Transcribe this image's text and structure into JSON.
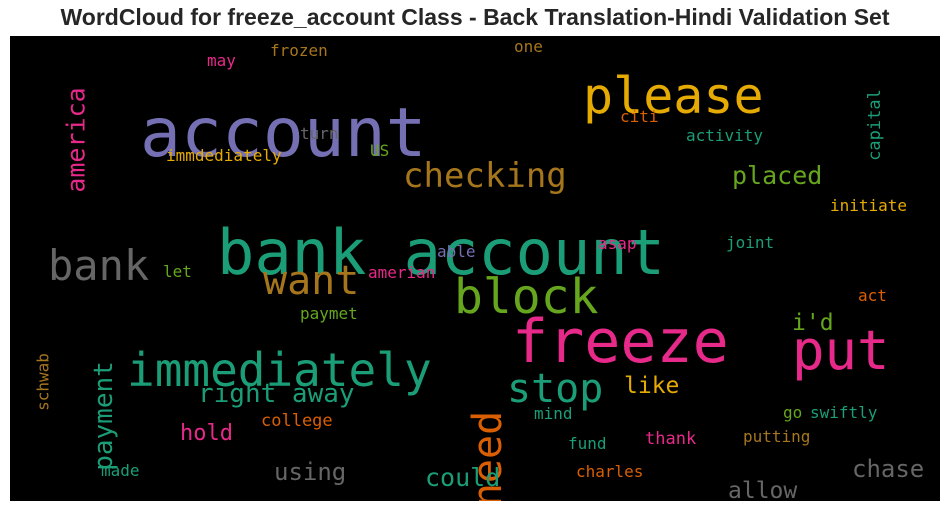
{
  "chart_data": {
    "type": "wordcloud",
    "title": "WordCloud for freeze_account Class - Back Translation-Hindi Validation Set",
    "background": "#000000",
    "words": [
      {
        "text": "account",
        "color": "#7570b3",
        "orientation": "horizontal"
      },
      {
        "text": "please",
        "color": "#e6ab02",
        "orientation": "horizontal"
      },
      {
        "text": "bank account",
        "color": "#1b9e77",
        "orientation": "horizontal"
      },
      {
        "text": "freeze",
        "color": "#e7298a",
        "orientation": "horizontal"
      },
      {
        "text": "immediately",
        "color": "#1b9e77",
        "orientation": "horizontal"
      },
      {
        "text": "put",
        "color": "#e7298a",
        "orientation": "horizontal"
      },
      {
        "text": "block",
        "color": "#66a61e",
        "orientation": "horizontal"
      },
      {
        "text": "bank",
        "color": "#666666",
        "orientation": "horizontal"
      },
      {
        "text": "want",
        "color": "#a6761d",
        "orientation": "horizontal"
      },
      {
        "text": "stop",
        "color": "#1b9e77",
        "orientation": "horizontal"
      },
      {
        "text": "need",
        "color": "#d95f02",
        "orientation": "vertical"
      },
      {
        "text": "checking",
        "color": "#a6761d",
        "orientation": "horizontal"
      },
      {
        "text": "america",
        "color": "#e7298a",
        "orientation": "vertical"
      },
      {
        "text": "payment",
        "color": "#1b9e77",
        "orientation": "vertical"
      },
      {
        "text": "right away",
        "color": "#1b9e77",
        "orientation": "horizontal"
      },
      {
        "text": "placed",
        "color": "#66a61e",
        "orientation": "horizontal"
      },
      {
        "text": "using",
        "color": "#666666",
        "orientation": "horizontal"
      },
      {
        "text": "chase",
        "color": "#666666",
        "orientation": "horizontal"
      },
      {
        "text": "could",
        "color": "#1b9e77",
        "orientation": "horizontal"
      },
      {
        "text": "allow",
        "color": "#666666",
        "orientation": "horizontal"
      },
      {
        "text": "hold",
        "color": "#e7298a",
        "orientation": "horizontal"
      },
      {
        "text": "i'd",
        "color": "#66a61e",
        "orientation": "horizontal"
      },
      {
        "text": "like",
        "color": "#e6ab02",
        "orientation": "horizontal"
      },
      {
        "text": "frozen",
        "color": "#a6761d",
        "orientation": "horizontal"
      },
      {
        "text": "may",
        "color": "#e7298a",
        "orientation": "horizontal"
      },
      {
        "text": "one",
        "color": "#a6761d",
        "orientation": "horizontal"
      },
      {
        "text": "capital",
        "color": "#1b9e77",
        "orientation": "vertical"
      },
      {
        "text": "citi",
        "color": "#d95f02",
        "orientation": "horizontal"
      },
      {
        "text": "activity",
        "color": "#1b9e77",
        "orientation": "horizontal"
      },
      {
        "text": "turn",
        "color": "#666666",
        "orientation": "horizontal"
      },
      {
        "text": "US",
        "color": "#66a61e",
        "orientation": "horizontal"
      },
      {
        "text": "immdediately",
        "color": "#e6ab02",
        "orientation": "horizontal"
      },
      {
        "text": "initiate",
        "color": "#e6ab02",
        "orientation": "horizontal"
      },
      {
        "text": "joint",
        "color": "#1b9e77",
        "orientation": "horizontal"
      },
      {
        "text": "asap",
        "color": "#e7298a",
        "orientation": "horizontal"
      },
      {
        "text": "able",
        "color": "#7570b3",
        "orientation": "horizontal"
      },
      {
        "text": "let",
        "color": "#66a61e",
        "orientation": "horizontal"
      },
      {
        "text": "amerian",
        "color": "#e7298a",
        "orientation": "horizontal"
      },
      {
        "text": "act",
        "color": "#d95f02",
        "orientation": "horizontal"
      },
      {
        "text": "paymet",
        "color": "#66a61e",
        "orientation": "horizontal"
      },
      {
        "text": "schwab",
        "color": "#a6761d",
        "orientation": "vertical"
      },
      {
        "text": "college",
        "color": "#d95f02",
        "orientation": "horizontal"
      },
      {
        "text": "mind",
        "color": "#1b9e77",
        "orientation": "horizontal"
      },
      {
        "text": "go",
        "color": "#66a61e",
        "orientation": "horizontal"
      },
      {
        "text": "swiftly",
        "color": "#1b9e77",
        "orientation": "horizontal"
      },
      {
        "text": "fund",
        "color": "#1b9e77",
        "orientation": "horizontal"
      },
      {
        "text": "thank",
        "color": "#e7298a",
        "orientation": "horizontal"
      },
      {
        "text": "putting",
        "color": "#a6761d",
        "orientation": "horizontal"
      },
      {
        "text": "made",
        "color": "#1b9e77",
        "orientation": "horizontal"
      },
      {
        "text": "charles",
        "color": "#d95f02",
        "orientation": "horizontal"
      }
    ]
  }
}
